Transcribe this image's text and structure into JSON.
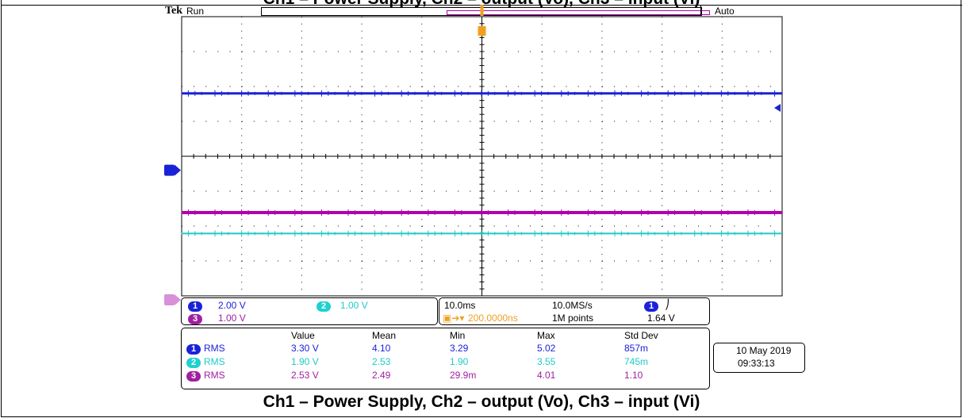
{
  "top_caption": "Ch1 – Power Supply, Ch2 – output (Vo), Ch3 – input (Vi)",
  "caption": "Ch1 – Power Supply, Ch2 – output (Vo), Ch3 – input (Vi)",
  "scope": {
    "brand": "Tek",
    "run_state": "Run",
    "trigger_mode": "Auto",
    "trigger_marker": "T"
  },
  "colors": {
    "ch1": "#1a22d8",
    "ch2": "#20c8c8",
    "ch3": "#b000b0",
    "trigger": "#f0a020",
    "grid": "#000000"
  },
  "channels": {
    "ch1": {
      "number": "1",
      "scale": "2.00 V"
    },
    "ch2": {
      "number": "2",
      "scale": "1.00 V"
    },
    "ch3": {
      "number": "3",
      "scale": "1.00 V"
    }
  },
  "timebase": {
    "time_div": "10.0ms",
    "sample_rate": "10.0MS/s",
    "trigger_delay": "200.0000ns",
    "record_length": "1M points",
    "trigger_channel": "1",
    "trigger_slope_symbol": "⎠",
    "trigger_level": "1.64 V"
  },
  "measurements": {
    "headers": [
      "Value",
      "Mean",
      "Min",
      "Max",
      "Std Dev"
    ],
    "rows": [
      {
        "ch": "1",
        "type": "RMS",
        "value": "3.30 V",
        "mean": "4.10",
        "min": "3.29",
        "max": "5.02",
        "std": "857m"
      },
      {
        "ch": "2",
        "type": "RMS",
        "value": "1.90 V",
        "mean": "2.53",
        "min": "1.90",
        "max": "3.55",
        "std": "745m"
      },
      {
        "ch": "3",
        "type": "RMS",
        "value": "2.53 V",
        "mean": "2.49",
        "min": "29.9m",
        "max": "4.01",
        "std": "1.10"
      }
    ]
  },
  "datetime": {
    "date": "10 May 2019",
    "time": "09:33:13"
  },
  "chart_data": {
    "type": "line",
    "title": "Ch1 – Power Supply, Ch2 – output (Vo), Ch3 – input (Vi)",
    "x_divisions": 10,
    "y_divisions": 8,
    "x_per_div": "10.0ms",
    "grid": true,
    "series": [
      {
        "name": "Ch1 – Power Supply",
        "channel": 1,
        "volts_per_div": 2.0,
        "level_divisions_above_ground": 2.2
      },
      {
        "name": "Ch2 – output (Vo)",
        "channel": 2,
        "volts_per_div": 1.0,
        "level_divisions_above_ground": 1.9
      },
      {
        "name": "Ch3 – input (Vi)",
        "channel": 3,
        "volts_per_div": 1.0,
        "level_divisions_above_ground": 2.5
      }
    ]
  }
}
